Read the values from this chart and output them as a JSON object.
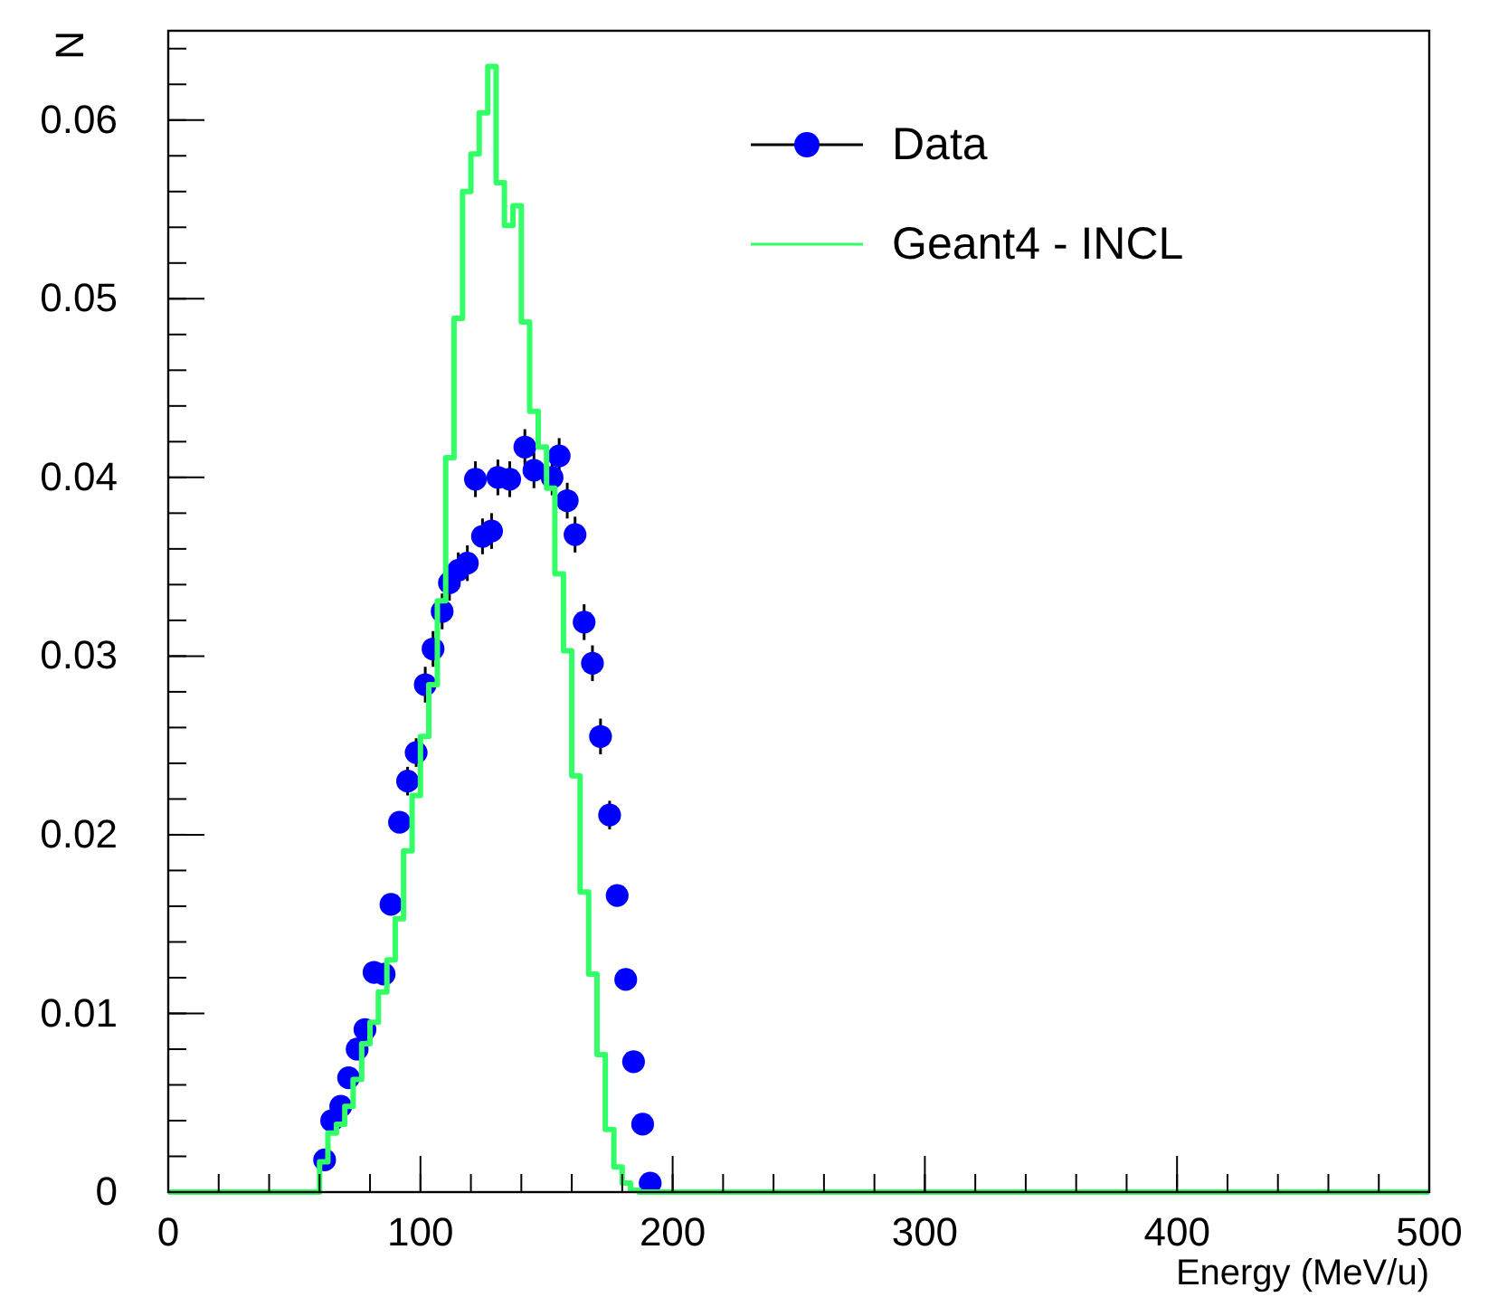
{
  "chart_data": {
    "type": "histogram",
    "xlabel": "Energy (MeV/u)",
    "ylabel": "N",
    "xlim": [
      0,
      500
    ],
    "ylim": [
      0,
      0.065
    ],
    "xticks": [
      0,
      100,
      200,
      300,
      400,
      500
    ],
    "yticks": [
      0,
      0.01,
      0.02,
      0.03,
      0.04,
      0.05,
      0.06
    ],
    "grid": false,
    "legend": "top right",
    "series": [
      {
        "name": "Data",
        "type": "scatter",
        "color": "#0000ff",
        "marker": "circle",
        "x": [
          62,
          64.8,
          68.4,
          71.5,
          74.9,
          78,
          81.6,
          85.6,
          88.3,
          91.7,
          94.9,
          98.3,
          101.9,
          105,
          108.6,
          111.5,
          115,
          118.6,
          121.8,
          124.6,
          128.2,
          130.7,
          135.4,
          141.4,
          145,
          152.2,
          155,
          158.2,
          161.3,
          164.9,
          168.2,
          171.4,
          175,
          178,
          181.4,
          184.5,
          188.1,
          191.1
        ],
        "values": [
          0.0018,
          0.004,
          0.0048,
          0.0064,
          0.008,
          0.0091,
          0.0123,
          0.0122,
          0.0161,
          0.0207,
          0.023,
          0.0246,
          0.0284,
          0.0304,
          0.0325,
          0.0341,
          0.0348,
          0.0352,
          0.0399,
          0.0367,
          0.037,
          0.04,
          0.0399,
          0.0417,
          0.0404,
          0.04,
          0.0412,
          0.0387,
          0.0368,
          0.0319,
          0.0296,
          0.0255,
          0.0211,
          0.0166,
          0.0119,
          0.0073,
          0.0038,
          0.0005
        ],
        "errors": [
          null,
          null,
          null,
          null,
          null,
          null,
          null,
          null,
          null,
          null,
          0.0008,
          0.0008,
          0.001,
          0.001,
          0.001,
          0.001,
          0.001,
          0.001,
          0.001,
          0.001,
          0.001,
          0.001,
          0.001,
          0.001,
          0.001,
          0.001,
          0.001,
          0.001,
          0.001,
          0.001,
          0.001,
          0.001,
          0.0008,
          null,
          null,
          null,
          null,
          null
        ]
      },
      {
        "name": "Geant4 - INCL",
        "color": "#33ff66",
        "bins": [
          0,
          60,
          63.3,
          66.7,
          70,
          73.3,
          76.7,
          80,
          83.3,
          86.7,
          90,
          93.3,
          96.7,
          100,
          103.3,
          106.7,
          110,
          113.3,
          116.7,
          120,
          123.3,
          126.7,
          130,
          133.3,
          136.7,
          140,
          143.3,
          146.7,
          150,
          153.3,
          156.7,
          160,
          163.3,
          166.7,
          170,
          173.3,
          176.7,
          180,
          183.3,
          186.7,
          500
        ],
        "values": [
          0,
          0.0017,
          0.0033,
          0.0038,
          0.0048,
          0.0063,
          0.0083,
          0.0095,
          0.0112,
          0.013,
          0.0153,
          0.0191,
          0.0222,
          0.0255,
          0.0284,
          0.0331,
          0.0411,
          0.0489,
          0.056,
          0.0581,
          0.0604,
          0.063,
          0.0565,
          0.0541,
          0.0552,
          0.0487,
          0.0437,
          0.0417,
          0.0394,
          0.0346,
          0.0303,
          0.0233,
          0.0168,
          0.0122,
          0.0077,
          0.0035,
          0.0014,
          0.0005,
          0.0001,
          0
        ]
      }
    ]
  }
}
